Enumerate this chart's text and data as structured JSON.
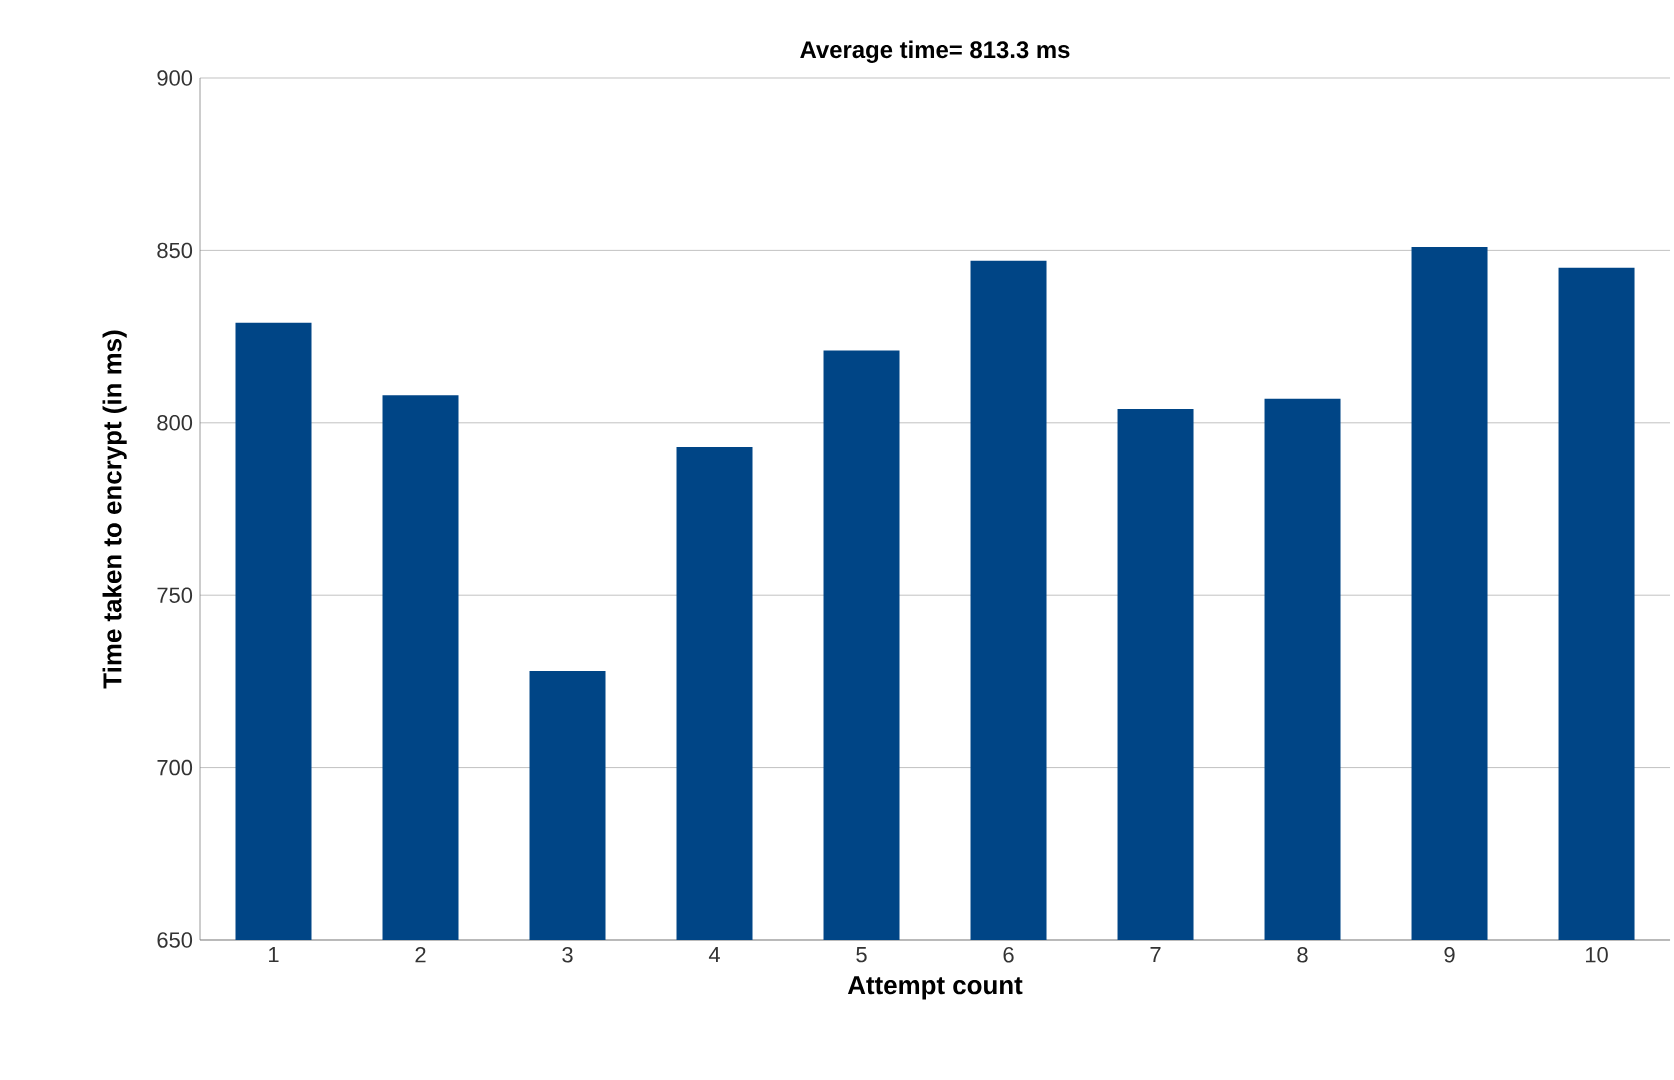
{
  "chart_data": {
    "type": "bar",
    "title": "Average time= 813.3 ms",
    "xlabel": "Attempt count",
    "ylabel": "Time taken to encrypt (in ms)",
    "categories": [
      "1",
      "2",
      "3",
      "4",
      "5",
      "6",
      "7",
      "8",
      "9",
      "10"
    ],
    "values": [
      829,
      808,
      728,
      793,
      821,
      847,
      804,
      807,
      851,
      845
    ],
    "color": "#004586",
    "ylim": [
      650,
      900
    ],
    "yticks": [
      650,
      700,
      750,
      800,
      850,
      900
    ],
    "grid": "y"
  }
}
